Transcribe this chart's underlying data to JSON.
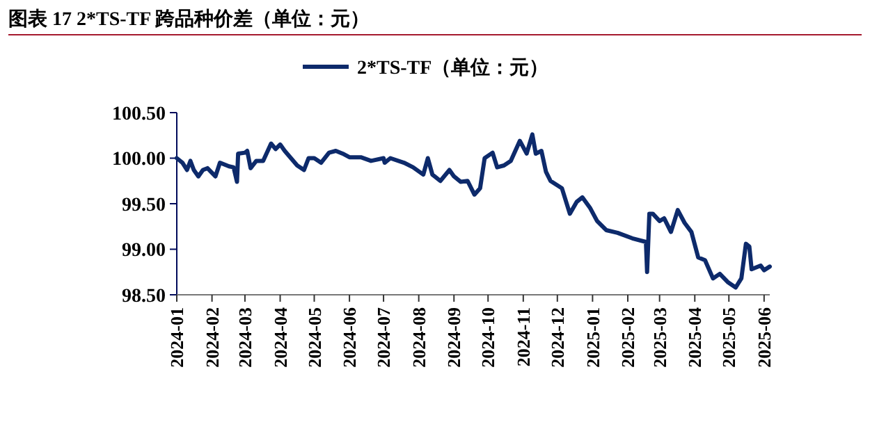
{
  "chart_data": {
    "type": "line",
    "title": "图表 17 2*TS-TF 跨品种价差（单位：元）",
    "x": [
      "2024-01-01",
      "2024-01-06",
      "2024-01-10",
      "2024-01-13",
      "2024-01-16",
      "2024-01-20",
      "2024-01-24",
      "2024-01-28",
      "2024-02-04",
      "2024-02-08",
      "2024-02-16",
      "2024-02-20",
      "2024-02-23",
      "2024-02-24",
      "2024-03-01",
      "2024-03-03",
      "2024-03-06",
      "2024-03-11",
      "2024-03-17",
      "2024-03-24",
      "2024-03-28",
      "2024-04-01",
      "2024-04-05",
      "2024-04-16",
      "2024-04-22",
      "2024-04-26",
      "2024-05-01",
      "2024-05-07",
      "2024-05-14",
      "2024-05-20",
      "2024-05-26",
      "2024-06-01",
      "2024-06-11",
      "2024-06-20",
      "2024-07-01",
      "2024-07-02",
      "2024-07-07",
      "2024-07-19",
      "2024-07-27",
      "2024-08-05",
      "2024-08-09",
      "2024-08-13",
      "2024-08-20",
      "2024-08-28",
      "2024-09-01",
      "2024-09-07",
      "2024-09-13",
      "2024-09-19",
      "2024-09-24",
      "2024-09-28",
      "2024-10-05",
      "2024-10-09",
      "2024-10-15",
      "2024-10-21",
      "2024-10-29",
      "2024-11-04",
      "2024-11-09",
      "2024-11-12",
      "2024-11-17",
      "2024-11-21",
      "2024-11-25",
      "2024-12-05",
      "2024-12-12",
      "2024-12-18",
      "2024-12-23",
      "2024-12-30",
      "2025-01-05",
      "2025-01-13",
      "2025-01-23",
      "2025-02-05",
      "2025-02-17",
      "2025-02-18",
      "2025-02-20",
      "2025-02-23",
      "2025-03-01",
      "2025-03-05",
      "2025-03-11",
      "2025-03-17",
      "2025-03-23",
      "2025-03-29",
      "2025-04-04",
      "2025-04-10",
      "2025-04-17",
      "2025-04-23",
      "2025-04-30",
      "2025-05-07",
      "2025-05-12",
      "2025-05-16",
      "2025-05-19",
      "2025-05-21",
      "2025-05-29",
      "2025-06-01",
      "2025-06-06"
    ],
    "series": [
      {
        "name": "2*TS-TF（单位：元）",
        "color": "#0d2a6b",
        "values": [
          100.0,
          99.95,
          99.87,
          99.97,
          99.87,
          99.8,
          99.87,
          99.89,
          99.8,
          99.95,
          99.91,
          99.9,
          99.74,
          100.05,
          100.06,
          100.08,
          99.89,
          99.97,
          99.97,
          100.16,
          100.1,
          100.15,
          100.08,
          99.92,
          99.87,
          100.0,
          100.0,
          99.95,
          100.06,
          100.08,
          100.05,
          100.01,
          100.01,
          99.97,
          100.0,
          99.95,
          100.0,
          99.95,
          99.9,
          99.82,
          100.0,
          99.82,
          99.75,
          99.87,
          99.8,
          99.74,
          99.75,
          99.6,
          99.67,
          100.0,
          100.06,
          99.9,
          99.92,
          99.97,
          100.19,
          100.05,
          100.26,
          100.05,
          100.08,
          99.85,
          99.75,
          99.67,
          99.39,
          99.52,
          99.57,
          99.45,
          99.31,
          99.21,
          99.18,
          99.12,
          99.08,
          98.75,
          99.39,
          99.39,
          99.31,
          99.34,
          99.19,
          99.43,
          99.29,
          99.19,
          98.91,
          98.88,
          98.68,
          98.73,
          98.64,
          98.58,
          98.68,
          99.06,
          99.03,
          98.78,
          98.82,
          98.77,
          98.81
        ]
      }
    ],
    "xlim": [
      "2024-01-01",
      "2025-06-06"
    ],
    "xticks": [
      {
        "value": "2024-01-01",
        "label": "2024-01"
      },
      {
        "value": "2024-02-01",
        "label": "2024-02"
      },
      {
        "value": "2024-03-01",
        "label": "2024-03"
      },
      {
        "value": "2024-04-01",
        "label": "2024-04"
      },
      {
        "value": "2024-05-01",
        "label": "2024-05"
      },
      {
        "value": "2024-06-01",
        "label": "2024-06"
      },
      {
        "value": "2024-07-01",
        "label": "2024-07"
      },
      {
        "value": "2024-08-01",
        "label": "2024-08"
      },
      {
        "value": "2024-09-01",
        "label": "2024-09"
      },
      {
        "value": "2024-10-01",
        "label": "2024-10"
      },
      {
        "value": "2024-11-01",
        "label": "2024-11"
      },
      {
        "value": "2024-12-01",
        "label": "2024-12"
      },
      {
        "value": "2025-01-01",
        "label": "2025-01"
      },
      {
        "value": "2025-02-01",
        "label": "2025-02"
      },
      {
        "value": "2025-03-01",
        "label": "2025-03"
      },
      {
        "value": "2025-04-01",
        "label": "2025-04"
      },
      {
        "value": "2025-05-01",
        "label": "2025-05"
      },
      {
        "value": "2025-06-01",
        "label": "2025-06"
      }
    ],
    "ylim": [
      98.5,
      100.5
    ],
    "yticks": [
      {
        "value": 98.5,
        "label": "98.50"
      },
      {
        "value": 99,
        "label": "99.00"
      },
      {
        "value": 99.5,
        "label": "99.50"
      },
      {
        "value": 100,
        "label": "100.00"
      },
      {
        "value": 100.5,
        "label": "100.50"
      }
    ],
    "legend": "top",
    "grid": false,
    "line_style": "solid",
    "marker": "none"
  }
}
